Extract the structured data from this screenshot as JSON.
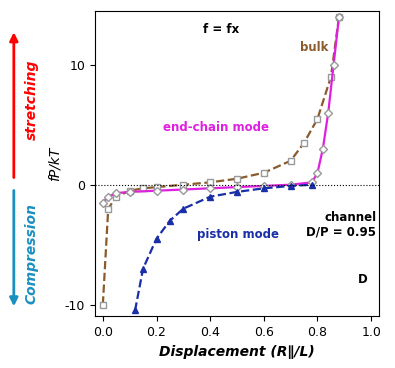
{
  "chart_data": {
    "type": "line",
    "x_label": "Displacement (R∥/L)",
    "y_label": "fP/kT",
    "y_directions": {
      "up": "stretching",
      "down": "Compression"
    },
    "annotations": [
      "bulk",
      "end-chain mode",
      "channel\nD/P = 0.95",
      "piston mode",
      "f = fx",
      "D"
    ],
    "xlim": [
      -0.03,
      1.03
    ],
    "ylim": [
      -11,
      14.5
    ],
    "xticks": [
      {
        "value": 0,
        "label": "0.0"
      },
      {
        "value": 0.2,
        "label": "0.2"
      },
      {
        "value": 0.4,
        "label": "0.4"
      },
      {
        "value": 0.6,
        "label": "0.6"
      },
      {
        "value": 0.8,
        "label": "0.8"
      },
      {
        "value": 1.0,
        "label": "1.0"
      }
    ],
    "yticks": [
      -10,
      0,
      10
    ],
    "hline": 0,
    "grid": false,
    "series": [
      {
        "name": "bulk",
        "color": "#8b5a2b",
        "marker": "square",
        "line_style": "dashed",
        "x": [
          0.0,
          0.02,
          0.05,
          0.1,
          0.15,
          0.2,
          0.3,
          0.4,
          0.5,
          0.6,
          0.7,
          0.75,
          0.8,
          0.85,
          0.88
        ],
        "values": [
          -10,
          -2,
          -1,
          -0.5,
          -0.3,
          -0.2,
          0,
          0.2,
          0.5,
          1.0,
          2.0,
          3.5,
          5.5,
          9,
          14
        ]
      },
      {
        "name": "end-chain mode",
        "color": "#e020e0",
        "marker": "diamond",
        "line_style": "solid",
        "x": [
          0.0,
          0.02,
          0.05,
          0.1,
          0.2,
          0.3,
          0.4,
          0.5,
          0.6,
          0.7,
          0.78,
          0.8,
          0.82,
          0.84,
          0.86,
          0.88
        ],
        "values": [
          -1.5,
          -1,
          -0.7,
          -0.6,
          -0.5,
          -0.4,
          -0.3,
          -0.2,
          -0.1,
          0,
          0.2,
          1,
          3,
          6,
          10,
          14
        ]
      },
      {
        "name": "piston mode",
        "color": "#1a2ea8",
        "marker": "triangle",
        "line_style": "dashed",
        "x": [
          0.12,
          0.15,
          0.2,
          0.25,
          0.3,
          0.4,
          0.5,
          0.6,
          0.7,
          0.78
        ],
        "values": [
          -10.5,
          -7,
          -4.5,
          -3,
          -2,
          -1,
          -0.6,
          -0.3,
          -0.1,
          0
        ]
      }
    ]
  }
}
